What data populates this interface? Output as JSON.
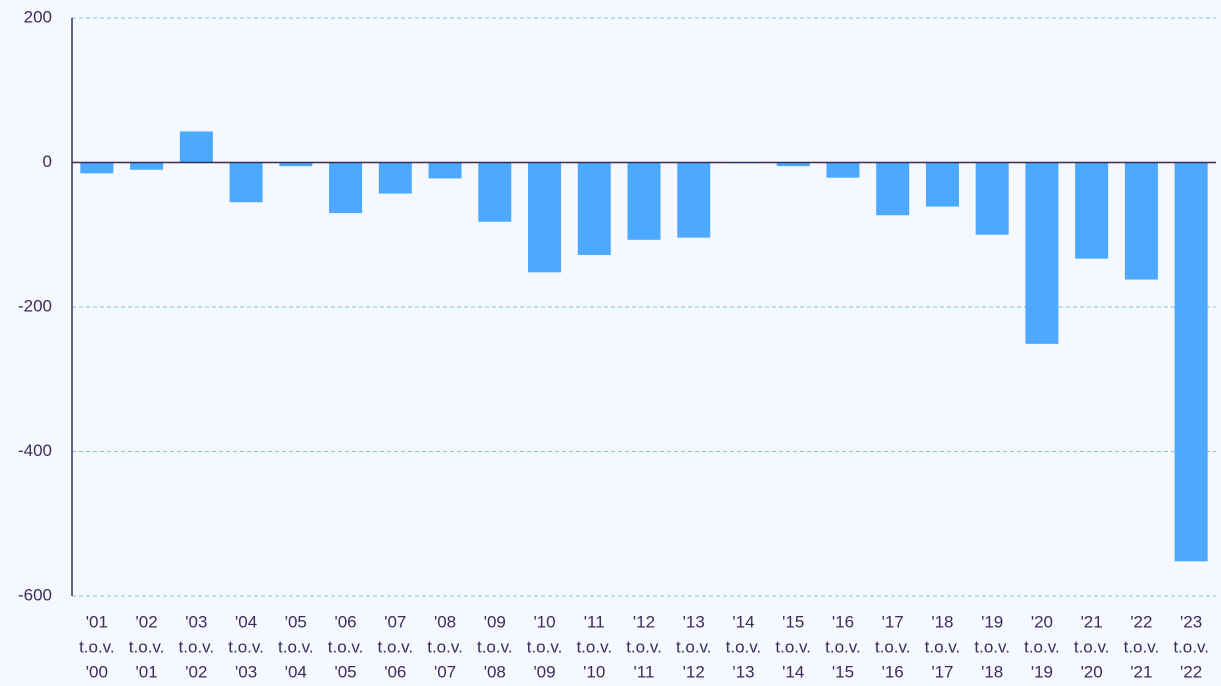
{
  "chart_data": {
    "type": "bar",
    "categories": [
      [
        "'01",
        "t.o.v.",
        "'00"
      ],
      [
        "'02",
        "t.o.v.",
        "'01"
      ],
      [
        "'03",
        "t.o.v.",
        "'02"
      ],
      [
        "'04",
        "t.o.v.",
        "'03"
      ],
      [
        "'05",
        "t.o.v.",
        "'04"
      ],
      [
        "'06",
        "t.o.v.",
        "'05"
      ],
      [
        "'07",
        "t.o.v.",
        "'06"
      ],
      [
        "'08",
        "t.o.v.",
        "'07"
      ],
      [
        "'09",
        "t.o.v.",
        "'08"
      ],
      [
        "'10",
        "t.o.v.",
        "'09"
      ],
      [
        "'11",
        "t.o.v.",
        "'10"
      ],
      [
        "'12",
        "t.o.v.",
        "'11"
      ],
      [
        "'13",
        "t.o.v.",
        "'12"
      ],
      [
        "'14",
        "t.o.v.",
        "'13"
      ],
      [
        "'15",
        "t.o.v.",
        "'14"
      ],
      [
        "'16",
        "t.o.v.",
        "'15"
      ],
      [
        "'17",
        "t.o.v.",
        "'16"
      ],
      [
        "'18",
        "t.o.v.",
        "'17"
      ],
      [
        "'19",
        "t.o.v.",
        "'18"
      ],
      [
        "'20",
        "t.o.v.",
        "'19"
      ],
      [
        "'21",
        "t.o.v.",
        "'20"
      ],
      [
        "'22",
        "t.o.v.",
        "'21"
      ],
      [
        "'23",
        "t.o.v.",
        "'22"
      ]
    ],
    "values": [
      -15,
      -10,
      43,
      -55,
      -5,
      -70,
      -43,
      -22,
      -82,
      -152,
      -128,
      -107,
      -104,
      -1,
      -5,
      -21,
      -73,
      -61,
      -100,
      -251,
      -133,
      -162,
      -552
    ],
    "color": "#4da8ff",
    "ylim": [
      -600,
      200
    ],
    "yticks": [
      200,
      0,
      -200,
      -400,
      -600
    ],
    "grid": true
  }
}
